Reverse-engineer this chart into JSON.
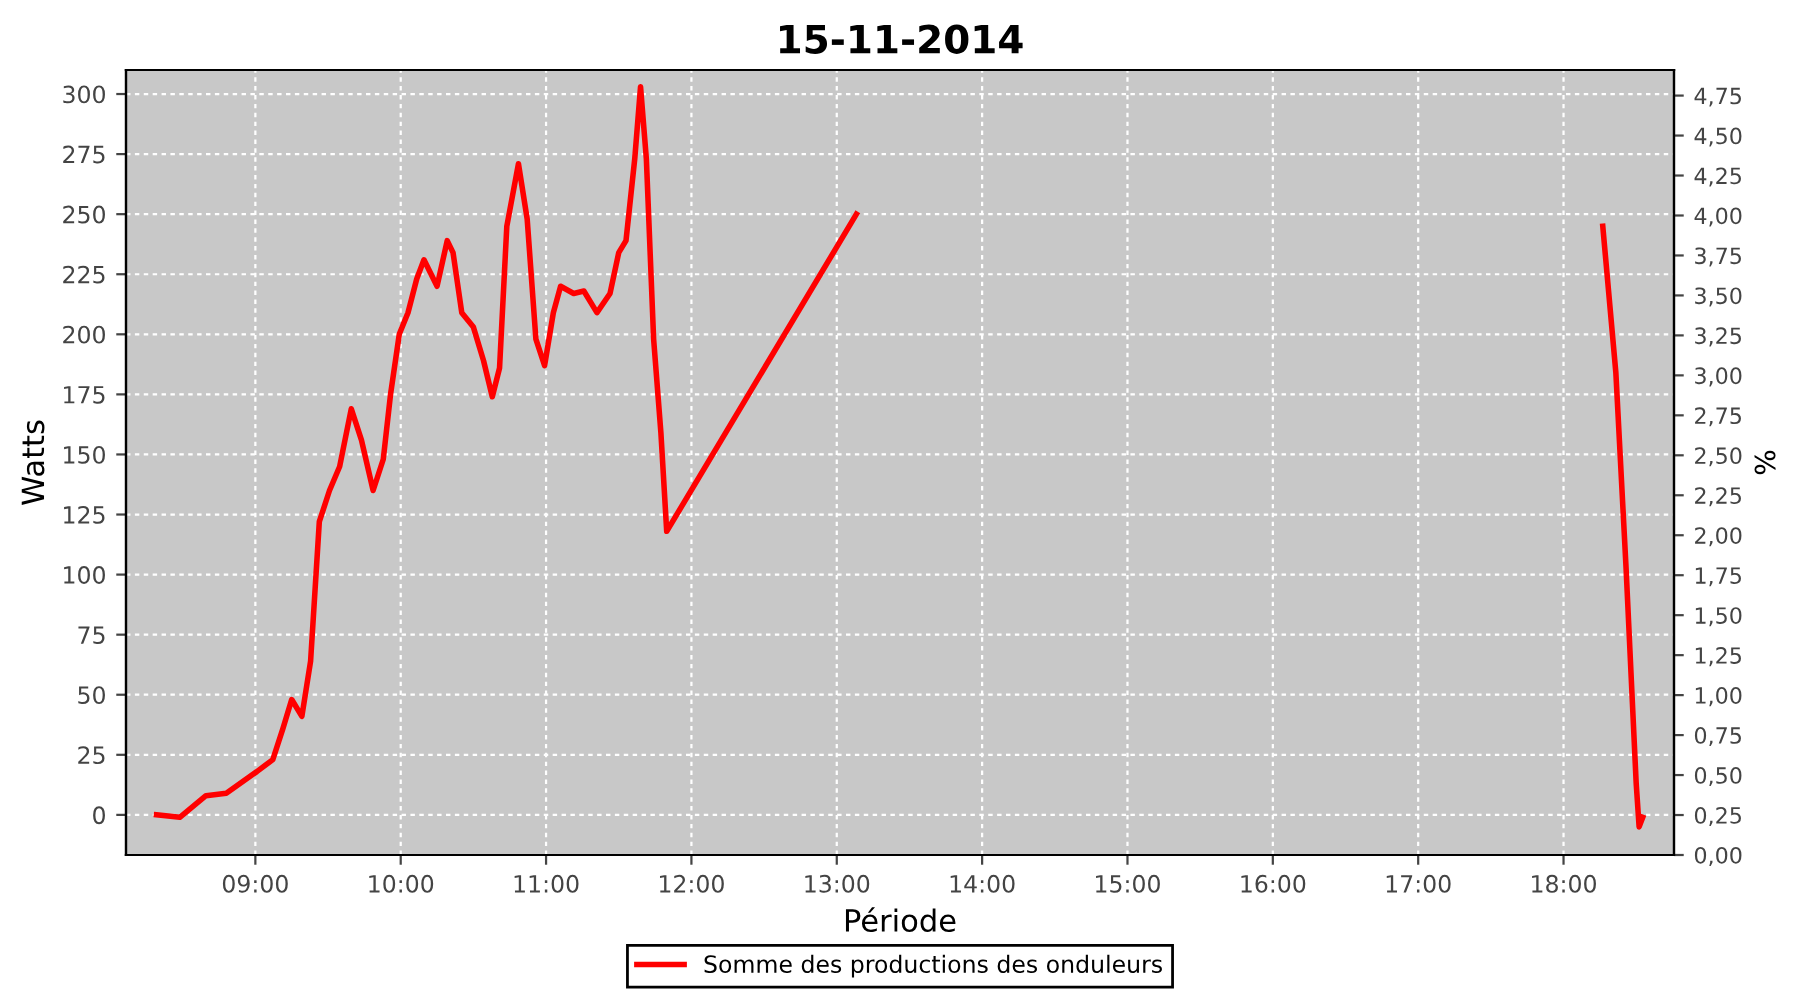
{
  "chart_data": {
    "type": "line",
    "title": "15-11-2014",
    "xlabel": "Période",
    "ylabel": "Watts",
    "y2label": "%",
    "series": [
      {
        "name": "Somme des productions des onduleurs",
        "color": "#ff0000",
        "x": [
          8.32,
          8.48,
          8.66,
          8.8,
          9.01,
          9.12,
          9.19,
          9.25,
          9.32,
          9.38,
          9.44,
          9.51,
          9.58,
          9.66,
          9.73,
          9.81,
          9.88,
          9.93,
          9.99,
          10.05,
          10.11,
          10.16,
          10.25,
          10.32,
          10.36,
          10.42,
          10.5,
          10.57,
          10.63,
          10.68,
          10.73,
          10.81,
          10.87,
          10.93,
          10.99,
          11.05,
          11.1,
          11.19,
          11.26,
          11.35,
          11.44,
          11.5,
          11.55,
          11.61,
          11.65,
          11.69,
          11.74,
          11.79,
          11.83,
          13.135,
          13.28,
          18.18,
          18.27,
          18.36,
          18.43,
          18.5,
          18.52,
          18.545
        ],
        "values": [
          0,
          -1,
          8,
          9,
          18,
          23,
          36,
          48,
          41,
          64,
          122,
          135,
          145,
          169,
          156,
          135,
          148,
          175,
          200,
          209,
          223,
          231,
          220,
          239,
          234,
          209,
          203,
          189,
          174,
          186,
          245,
          271,
          248,
          198,
          187,
          209,
          220,
          217,
          218,
          209,
          217,
          234,
          239,
          273,
          303,
          273,
          198,
          159,
          118,
          250,
          null,
          null,
          245,
          184,
          103,
          13,
          -5,
          -1
        ]
      }
    ],
    "xlim": [
      8.11,
      18.76
    ],
    "ylim": [
      -16.7,
      310
    ],
    "y2lim": [
      0,
      4.91
    ],
    "xticks": [
      {
        "value": 9,
        "label": "09:00"
      },
      {
        "value": 10,
        "label": "10:00"
      },
      {
        "value": 11,
        "label": "11:00"
      },
      {
        "value": 12,
        "label": "12:00"
      },
      {
        "value": 13,
        "label": "13:00"
      },
      {
        "value": 14,
        "label": "14:00"
      },
      {
        "value": 15,
        "label": "15:00"
      },
      {
        "value": 16,
        "label": "16:00"
      },
      {
        "value": 17,
        "label": "17:00"
      },
      {
        "value": 18,
        "label": "18:00"
      }
    ],
    "yticks": [
      0,
      25,
      50,
      75,
      100,
      125,
      150,
      175,
      200,
      225,
      250,
      275,
      300
    ],
    "y2ticks": [
      {
        "value": 0,
        "label": "0,00"
      },
      {
        "value": 0.25,
        "label": "0,25"
      },
      {
        "value": 0.5,
        "label": "0,50"
      },
      {
        "value": 0.75,
        "label": "0,75"
      },
      {
        "value": 1,
        "label": "1,00"
      },
      {
        "value": 1.25,
        "label": "1,25"
      },
      {
        "value": 1.5,
        "label": "1,50"
      },
      {
        "value": 1.75,
        "label": "1,75"
      },
      {
        "value": 2,
        "label": "2,00"
      },
      {
        "value": 2.25,
        "label": "2,25"
      },
      {
        "value": 2.5,
        "label": "2,50"
      },
      {
        "value": 2.75,
        "label": "2,75"
      },
      {
        "value": 3,
        "label": "3,00"
      },
      {
        "value": 3.25,
        "label": "3,25"
      },
      {
        "value": 3.5,
        "label": "3,50"
      },
      {
        "value": 3.75,
        "label": "3,75"
      },
      {
        "value": 4,
        "label": "4,00"
      },
      {
        "value": 4.25,
        "label": "4,25"
      },
      {
        "value": 4.5,
        "label": "4,50"
      },
      {
        "value": 4.75,
        "label": "4,75"
      }
    ],
    "grid": true,
    "legend": "bottom",
    "marker": "none",
    "line_style": "solid"
  }
}
